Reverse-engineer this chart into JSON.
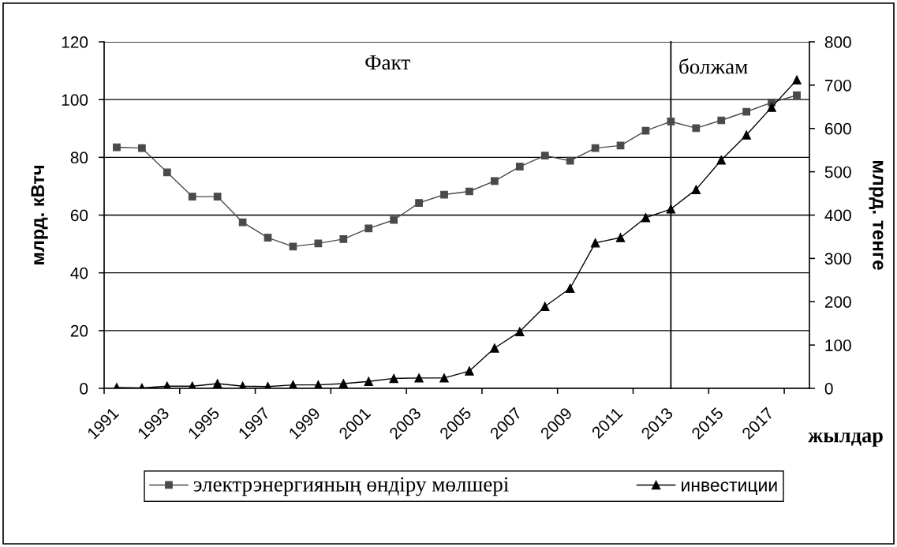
{
  "chart_data": {
    "type": "line",
    "xlabel": "жылдар",
    "ylabel": "млрд. кВтч",
    "y2label": "млрд. тенге",
    "x": [
      1991,
      1992,
      1993,
      1994,
      1995,
      1996,
      1997,
      1998,
      1999,
      2000,
      2001,
      2002,
      2003,
      2004,
      2005,
      2006,
      2007,
      2008,
      2009,
      2010,
      2011,
      2012,
      2013,
      2014,
      2015,
      2016,
      2017,
      2018
    ],
    "xlim": [
      1990.5,
      2018.5
    ],
    "xticks": [
      {
        "value": 1990.5,
        "label": null
      },
      1991,
      1993,
      {
        "value": 1993.5,
        "label": null
      },
      1995,
      {
        "value": 1996.5,
        "label": null
      },
      1997,
      1999,
      {
        "value": 1999.5,
        "label": null
      },
      2001,
      {
        "value": 2002.5,
        "label": null
      },
      2003,
      2005,
      {
        "value": 2005.5,
        "label": null
      },
      2007,
      {
        "value": 2008.5,
        "label": null
      },
      2009,
      2011,
      {
        "value": 2011.5,
        "label": null
      },
      2013,
      {
        "value": 2014.5,
        "label": null
      },
      2015,
      2017,
      {
        "value": 2017.5,
        "label": null
      }
    ],
    "ylim": [
      0,
      120
    ],
    "yticks": [
      0,
      20,
      40,
      60,
      80,
      100,
      120
    ],
    "y2lim": [
      0,
      800
    ],
    "y2ticks": [
      0,
      100,
      200,
      300,
      400,
      500,
      600,
      700,
      800
    ],
    "grid": "y",
    "legend": "bottom",
    "line_style": "solid",
    "series": [
      {
        "name": "электрэнергияның өндіру мөлшері",
        "color": "#4a4a4a",
        "marker": "square",
        "values": [
          83.5,
          83.2,
          74.8,
          66.4,
          66.4,
          57.5,
          52.2,
          49.1,
          50.2,
          51.7,
          55.4,
          58.3,
          64.2,
          67.1,
          68.2,
          71.8,
          76.8,
          80.6,
          78.8,
          83.2,
          84.1,
          89.2,
          92.4,
          90.1,
          92.8,
          95.8,
          99.0,
          101.5
        ]
      },
      {
        "name": "инвестиции",
        "color": "#000000",
        "marker": "triangle",
        "axis": "y2",
        "values": [
          2,
          1,
          5,
          5,
          11,
          5,
          4,
          8,
          8,
          11,
          16,
          23,
          24,
          24,
          40,
          93,
          131,
          189,
          231,
          336,
          348,
          394,
          414,
          459,
          527,
          585,
          649,
          712
        ]
      }
    ],
    "ref_lines": [
      {
        "axis": "x",
        "value": 2013,
        "color": "#000000"
      }
    ],
    "annotations": [
      "Факт",
      "болжам"
    ]
  }
}
